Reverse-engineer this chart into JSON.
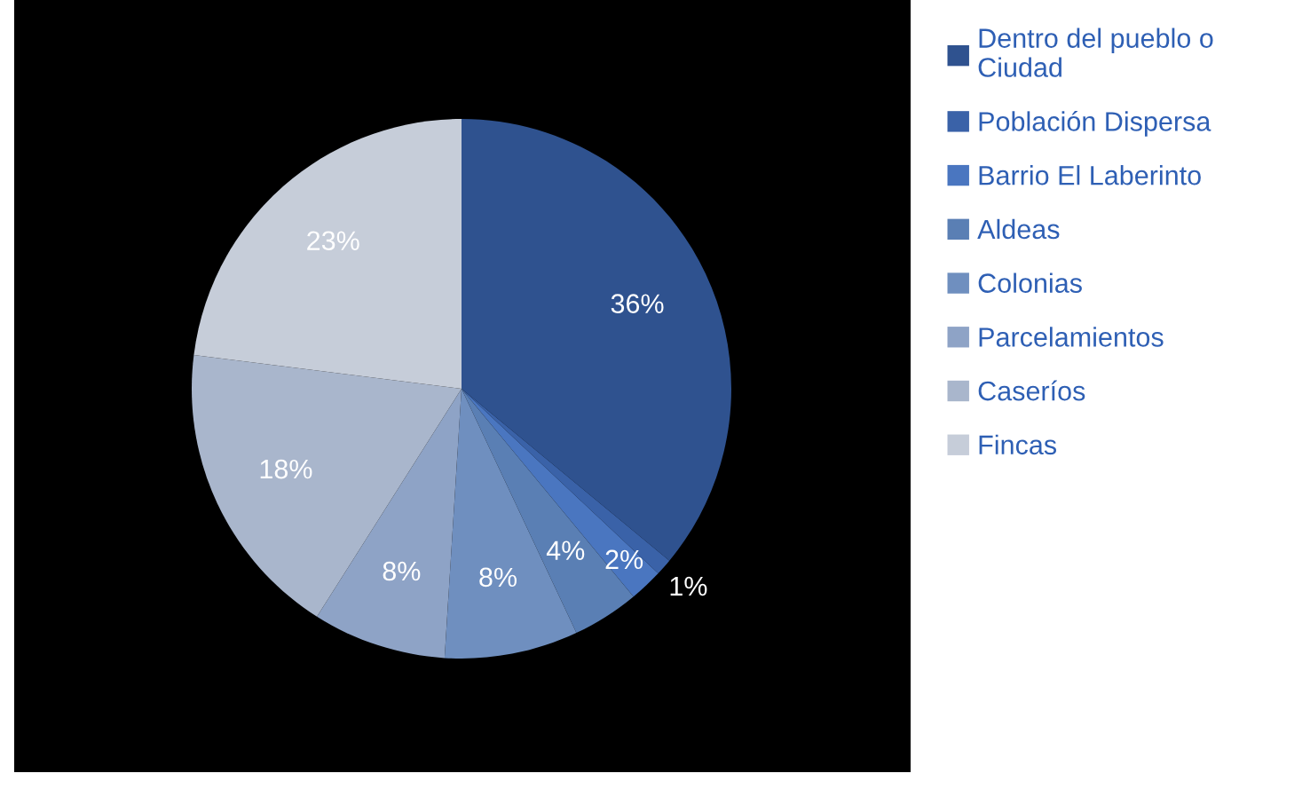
{
  "chart_data": {
    "type": "pie",
    "categories": [
      "Dentro del pueblo o Ciudad",
      "Población Dispersa",
      "Barrio El Laberinto",
      "Aldeas",
      "Colonias",
      "Parcelamientos",
      "Caseríos",
      "Fincas"
    ],
    "values": [
      36,
      1,
      2,
      4,
      8,
      8,
      18,
      23
    ],
    "value_labels": [
      "36%",
      "1%",
      "2%",
      "4%",
      "8%",
      "8%",
      "18%",
      "23%"
    ],
    "colors": [
      "#2f528f",
      "#3a62a8",
      "#4a76c0",
      "#5a7fb4",
      "#6f8fbf",
      "#8ea3c6",
      "#a9b6cc",
      "#c6cdd9"
    ],
    "legend": "right"
  }
}
